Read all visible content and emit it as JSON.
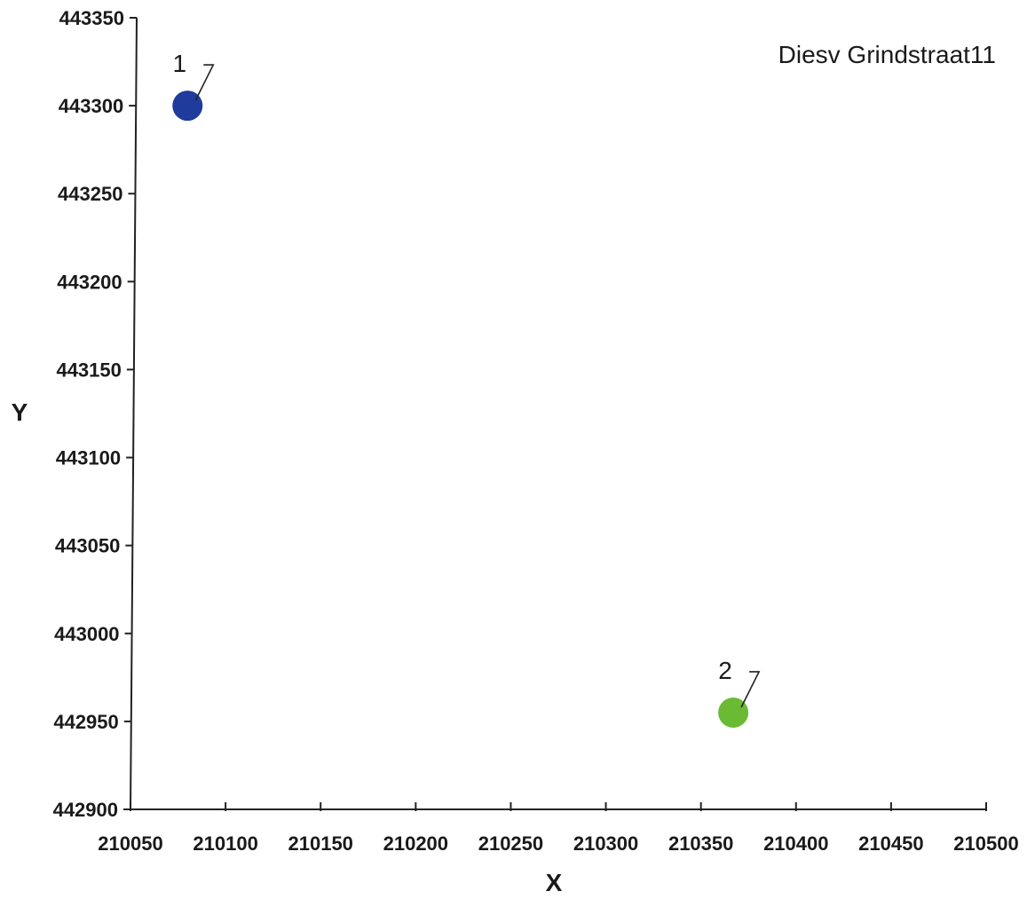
{
  "chart_data": {
    "type": "scatter",
    "title": "Diesv Grindstraat11",
    "xlabel": "X",
    "ylabel": "Y",
    "xlim": [
      210050,
      210500
    ],
    "ylim": [
      442900,
      443350
    ],
    "x_ticks": [
      "210050",
      "210100",
      "210150",
      "210200",
      "210250",
      "210300",
      "210350",
      "210400",
      "210450",
      "210500"
    ],
    "y_ticks": [
      "442900",
      "442950",
      "443000",
      "443050",
      "443100",
      "443150",
      "443200",
      "443250",
      "443300",
      "443350"
    ],
    "grid": false,
    "points": [
      {
        "label": "1",
        "x": 210080,
        "y": 443300,
        "color": "#1f3b9c"
      },
      {
        "label": "2",
        "x": 210367,
        "y": 442955,
        "color": "#6aba34"
      }
    ]
  }
}
